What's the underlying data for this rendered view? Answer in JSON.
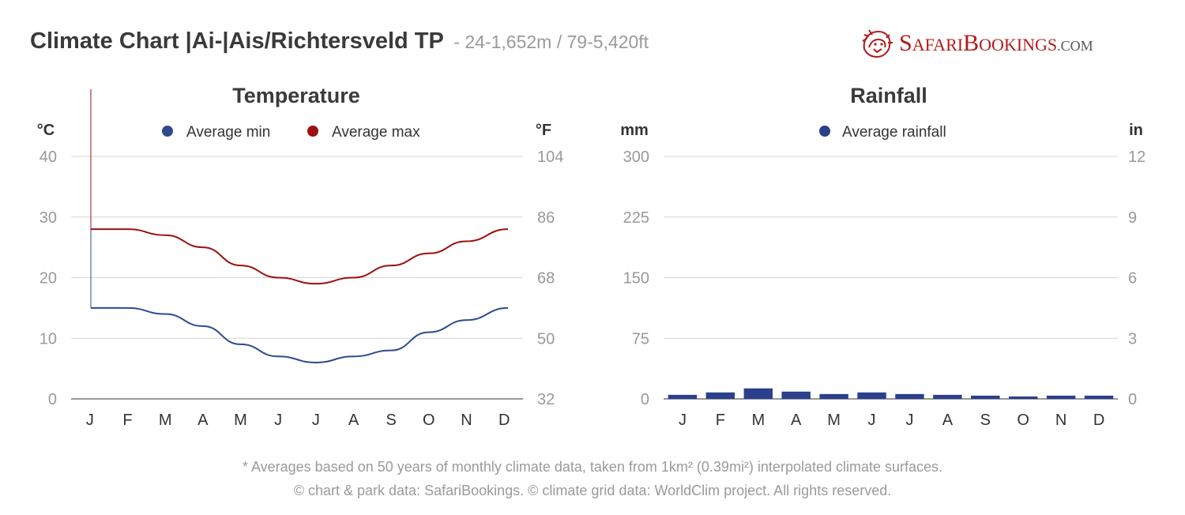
{
  "header": {
    "title": "Climate Chart |Ai-|Ais/Richtersveld TP",
    "subtitle": "- 24-1,652m / 79-5,420ft"
  },
  "logo": {
    "parts": [
      "S",
      "AFARI",
      "B",
      "OOKINGS",
      ".COM"
    ],
    "brand": "SafariBookings.com",
    "color": "#b31b1b"
  },
  "footer": {
    "line1": "* Averages based on 50 years of monthly climate data, taken from 1km² (0.39mi²) interpolated climate surfaces.",
    "line2": "© chart & park data: SafariBookings. © climate grid data: WorldClim project. All rights reserved."
  },
  "chart_data": [
    {
      "type": "line",
      "title": "Temperature",
      "ylabel_left": "°C",
      "ylabel_right": "°F",
      "categories": [
        "J",
        "F",
        "M",
        "A",
        "M",
        "J",
        "J",
        "A",
        "S",
        "O",
        "N",
        "D"
      ],
      "ylim": [
        0,
        40
      ],
      "yticks_left": [
        "0",
        "10",
        "20",
        "30",
        "40"
      ],
      "yticks_right": [
        "32",
        "50",
        "68",
        "86",
        "104"
      ],
      "grid": true,
      "legend_position": "top",
      "series": [
        {
          "name": "Average min",
          "color": "#2e4a8f",
          "values": [
            15,
            15,
            14,
            12,
            9,
            7,
            6,
            7,
            8,
            11,
            13,
            15
          ]
        },
        {
          "name": "Average max",
          "color": "#9b1010",
          "values": [
            28,
            28,
            27,
            25,
            22,
            20,
            19,
            20,
            22,
            24,
            26,
            28
          ]
        }
      ]
    },
    {
      "type": "bar",
      "title": "Rainfall",
      "ylabel_left": "mm",
      "ylabel_right": "in",
      "categories": [
        "J",
        "F",
        "M",
        "A",
        "M",
        "J",
        "J",
        "A",
        "S",
        "O",
        "N",
        "D"
      ],
      "ylim": [
        0,
        300
      ],
      "yticks_left": [
        "0",
        "75",
        "150",
        "225",
        "300"
      ],
      "yticks_right": [
        "0",
        "3",
        "6",
        "9",
        "12"
      ],
      "grid": true,
      "legend_position": "top",
      "series": [
        {
          "name": "Average rainfall",
          "color": "#2b3f8c",
          "values": [
            5,
            8,
            13,
            9,
            6,
            8,
            6,
            5,
            4,
            3,
            4,
            4
          ]
        }
      ]
    }
  ]
}
